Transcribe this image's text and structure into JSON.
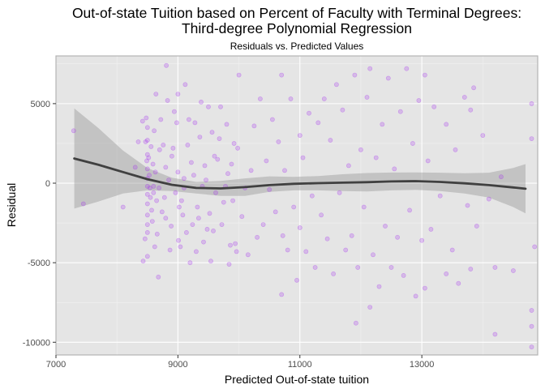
{
  "chart_data": {
    "type": "scatter",
    "title": "Out-of-state Tuition based on Percent of Faculty with Terminal Degrees:",
    "title_line2": "Third-degree Polynomial Regression",
    "subtitle": "Residuals vs. Predicted Values",
    "xlabel": "Predicted Out-of-state tuition",
    "ylabel": "Residual",
    "xlim": [
      7000,
      14900
    ],
    "ylim": [
      -10800,
      8000
    ],
    "x_ticks": [
      7000,
      9000,
      11000,
      13000
    ],
    "x_tick_labels": [
      "7000",
      "9000",
      "11000",
      "13000"
    ],
    "y_ticks": [
      -10000,
      -5000,
      0,
      5000
    ],
    "y_tick_labels": [
      "-10000",
      "-5000",
      "0",
      "5000"
    ],
    "grid": true,
    "colors": {
      "panel_background": "#e5e5e5",
      "panel_border": "#b3b3b3",
      "grid_major": "#ffffff",
      "grid_minor": "#f2f2f2",
      "points": "#a020f0",
      "smooth_line": "#404040",
      "confidence_band": "#999999"
    },
    "series": [
      {
        "kind": "points",
        "points": [
          [
            7290,
            3300
          ],
          [
            7450,
            -1300
          ],
          [
            8100,
            -1500
          ],
          [
            8300,
            1000
          ],
          [
            8350,
            2600
          ],
          [
            8420,
            3900
          ],
          [
            8430,
            -4900
          ],
          [
            8460,
            -3500
          ],
          [
            8470,
            2600
          ],
          [
            8480,
            4100
          ],
          [
            8490,
            1400
          ],
          [
            8500,
            3500
          ],
          [
            8500,
            2700
          ],
          [
            8500,
            1800
          ],
          [
            8500,
            900
          ],
          [
            8500,
            300
          ],
          [
            8500,
            -200
          ],
          [
            8500,
            -700
          ],
          [
            8500,
            -1300
          ],
          [
            8500,
            -2000
          ],
          [
            8500,
            -2600
          ],
          [
            8500,
            -3100
          ],
          [
            8500,
            -4600
          ],
          [
            8520,
            1600
          ],
          [
            8530,
            500
          ],
          [
            8540,
            -300
          ],
          [
            8550,
            -900
          ],
          [
            8560,
            2300
          ],
          [
            8570,
            -1700
          ],
          [
            8580,
            -2400
          ],
          [
            8590,
            1200
          ],
          [
            8600,
            -200
          ],
          [
            8600,
            -600
          ],
          [
            8610,
            3300
          ],
          [
            8620,
            -4000
          ],
          [
            8630,
            700
          ],
          [
            8640,
            5600
          ],
          [
            8650,
            -1100
          ],
          [
            8660,
            -3200
          ],
          [
            8680,
            -5900
          ],
          [
            8690,
            -300
          ],
          [
            8700,
            2100
          ],
          [
            8720,
            4000
          ],
          [
            8740,
            -1800
          ],
          [
            8760,
            2400
          ],
          [
            8780,
            -900
          ],
          [
            8800,
            1000
          ],
          [
            8800,
            -2200
          ],
          [
            8810,
            7400
          ],
          [
            8830,
            5200
          ],
          [
            8850,
            200
          ],
          [
            8870,
            -4200
          ],
          [
            8890,
            -2700
          ],
          [
            8900,
            1700
          ],
          [
            8920,
            2200
          ],
          [
            8940,
            4500
          ],
          [
            8960,
            -600
          ],
          [
            8980,
            3800
          ],
          [
            9000,
            700
          ],
          [
            9000,
            5600
          ],
          [
            9010,
            -3600
          ],
          [
            9020,
            -1500
          ],
          [
            9040,
            -4000
          ],
          [
            9060,
            -1100
          ],
          [
            9080,
            -2000
          ],
          [
            9100,
            -300
          ],
          [
            9100,
            300
          ],
          [
            9120,
            6200
          ],
          [
            9140,
            -3100
          ],
          [
            9160,
            2400
          ],
          [
            9180,
            4000
          ],
          [
            9200,
            -5000
          ],
          [
            9220,
            1300
          ],
          [
            9240,
            -2600
          ],
          [
            9260,
            500
          ],
          [
            9280,
            3800
          ],
          [
            9300,
            -4300
          ],
          [
            9320,
            -1500
          ],
          [
            9340,
            -2200
          ],
          [
            9360,
            2900
          ],
          [
            9380,
            5100
          ],
          [
            9400,
            -200
          ],
          [
            9420,
            -3700
          ],
          [
            9440,
            1100
          ],
          [
            9460,
            200
          ],
          [
            9480,
            -2900
          ],
          [
            9500,
            4800
          ],
          [
            9520,
            -1900
          ],
          [
            9540,
            -4900
          ],
          [
            9560,
            3200
          ],
          [
            9580,
            -3000
          ],
          [
            9600,
            1700
          ],
          [
            9620,
            -600
          ],
          [
            9650,
            1500
          ],
          [
            9680,
            2800
          ],
          [
            9700,
            4800
          ],
          [
            9720,
            -2600
          ],
          [
            9750,
            -1200
          ],
          [
            9780,
            -200
          ],
          [
            9800,
            3700
          ],
          [
            9820,
            600
          ],
          [
            9840,
            -5100
          ],
          [
            9860,
            -3900
          ],
          [
            9880,
            1200
          ],
          [
            9900,
            -1100
          ],
          [
            9920,
            2500
          ],
          [
            9940,
            -3800
          ],
          [
            9960,
            -4300
          ],
          [
            9980,
            2200
          ],
          [
            10000,
            6800
          ],
          [
            10050,
            -2100
          ],
          [
            10100,
            -300
          ],
          [
            10150,
            -4500
          ],
          [
            10200,
            800
          ],
          [
            10250,
            3600
          ],
          [
            10300,
            -3400
          ],
          [
            10350,
            5300
          ],
          [
            10400,
            -2600
          ],
          [
            10450,
            1400
          ],
          [
            10500,
            -400
          ],
          [
            10550,
            4000
          ],
          [
            10600,
            -1800
          ],
          [
            10650,
            2600
          ],
          [
            10700,
            -7000
          ],
          [
            10700,
            6800
          ],
          [
            10720,
            -3300
          ],
          [
            10750,
            800
          ],
          [
            10800,
            -4200
          ],
          [
            10850,
            5300
          ],
          [
            10900,
            -1500
          ],
          [
            10950,
            -6100
          ],
          [
            11000,
            3000
          ],
          [
            11000,
            -2800
          ],
          [
            11050,
            1600
          ],
          [
            11100,
            -4300
          ],
          [
            11150,
            4400
          ],
          [
            11200,
            -800
          ],
          [
            11250,
            -5300
          ],
          [
            11300,
            3800
          ],
          [
            11350,
            -2000
          ],
          [
            11400,
            5300
          ],
          [
            11450,
            -3500
          ],
          [
            11500,
            2700
          ],
          [
            11550,
            -5700
          ],
          [
            11600,
            6200
          ],
          [
            11650,
            -600
          ],
          [
            11700,
            4600
          ],
          [
            11750,
            -4200
          ],
          [
            11800,
            1100
          ],
          [
            11850,
            -3300
          ],
          [
            11900,
            6800
          ],
          [
            11920,
            -8800
          ],
          [
            11950,
            -5300
          ],
          [
            12000,
            2100
          ],
          [
            12050,
            -1500
          ],
          [
            12100,
            5400
          ],
          [
            12150,
            7200
          ],
          [
            12150,
            -7800
          ],
          [
            12200,
            -4500
          ],
          [
            12250,
            1600
          ],
          [
            12300,
            -6500
          ],
          [
            12350,
            3700
          ],
          [
            12400,
            -2700
          ],
          [
            12450,
            6600
          ],
          [
            12500,
            -5300
          ],
          [
            12550,
            900
          ],
          [
            12600,
            -3400
          ],
          [
            12650,
            4500
          ],
          [
            12700,
            -5800
          ],
          [
            12750,
            7200
          ],
          [
            12800,
            -1700
          ],
          [
            12850,
            2500
          ],
          [
            12900,
            -7100
          ],
          [
            12950,
            5200
          ],
          [
            13000,
            -3600
          ],
          [
            13050,
            6800
          ],
          [
            13050,
            -6600
          ],
          [
            13100,
            1400
          ],
          [
            13150,
            -2900
          ],
          [
            13200,
            4800
          ],
          [
            13300,
            -800
          ],
          [
            13400,
            -5700
          ],
          [
            13400,
            3700
          ],
          [
            13500,
            -4200
          ],
          [
            13550,
            2100
          ],
          [
            13600,
            -6300
          ],
          [
            13700,
            5400
          ],
          [
            13750,
            -1400
          ],
          [
            13800,
            -5400
          ],
          [
            13800,
            4600
          ],
          [
            13850,
            6000
          ],
          [
            13900,
            -2700
          ],
          [
            14000,
            3000
          ],
          [
            14100,
            -1000
          ],
          [
            14200,
            -5300
          ],
          [
            14200,
            -9500
          ],
          [
            14300,
            400
          ],
          [
            14500,
            -5500
          ],
          [
            14800,
            5000
          ],
          [
            14800,
            2800
          ],
          [
            14800,
            -8000
          ],
          [
            14800,
            -9000
          ],
          [
            14800,
            -10300
          ],
          [
            14850,
            -4000
          ]
        ]
      },
      {
        "kind": "smooth",
        "x": [
          7300,
          7700,
          8100,
          8500,
          8900,
          9300,
          9700,
          10100,
          10500,
          10900,
          11300,
          11700,
          12100,
          12500,
          12900,
          13300,
          13700,
          14100,
          14500,
          14700
        ],
        "y": [
          1550,
          1150,
          700,
          250,
          -100,
          -300,
          -330,
          -250,
          -120,
          -40,
          0,
          30,
          60,
          110,
          130,
          80,
          -10,
          -120,
          -270,
          -350
        ],
        "lower": [
          -1600,
          -1150,
          -650,
          -450,
          -500,
          -650,
          -800,
          -800,
          -550,
          -450,
          -450,
          -500,
          -520,
          -450,
          -420,
          -500,
          -650,
          -900,
          -1500,
          -1900
        ],
        "upper": [
          4700,
          3450,
          2050,
          950,
          350,
          80,
          140,
          300,
          430,
          400,
          450,
          560,
          640,
          670,
          680,
          660,
          630,
          660,
          960,
          1200
        ]
      }
    ]
  }
}
